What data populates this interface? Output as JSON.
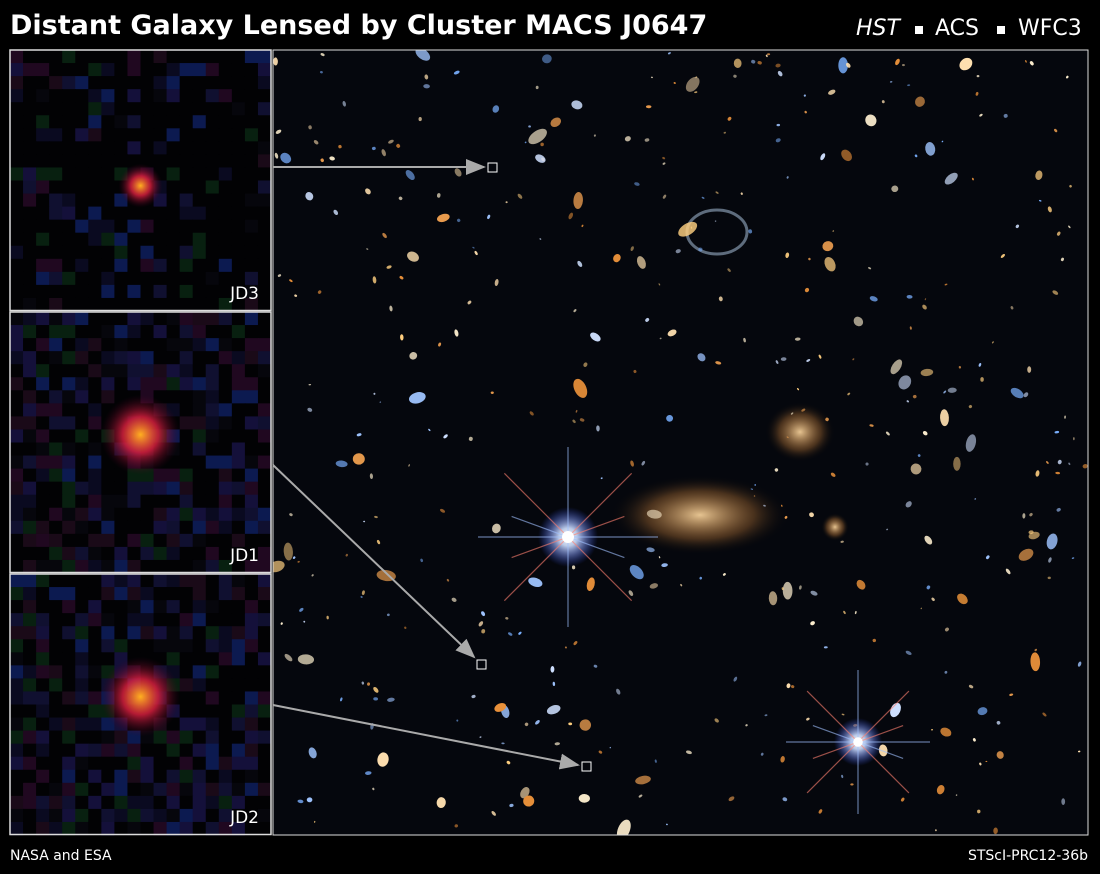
{
  "header": {
    "title": "Distant Galaxy Lensed by Cluster MACS J0647",
    "instruments": [
      "HST",
      "ACS",
      "WFC3"
    ]
  },
  "panels": [
    {
      "label": "JD3"
    },
    {
      "label": "JD1"
    },
    {
      "label": "JD2"
    }
  ],
  "footer": {
    "credit": "NASA and ESA",
    "id": "STScI-PRC12-36b"
  }
}
